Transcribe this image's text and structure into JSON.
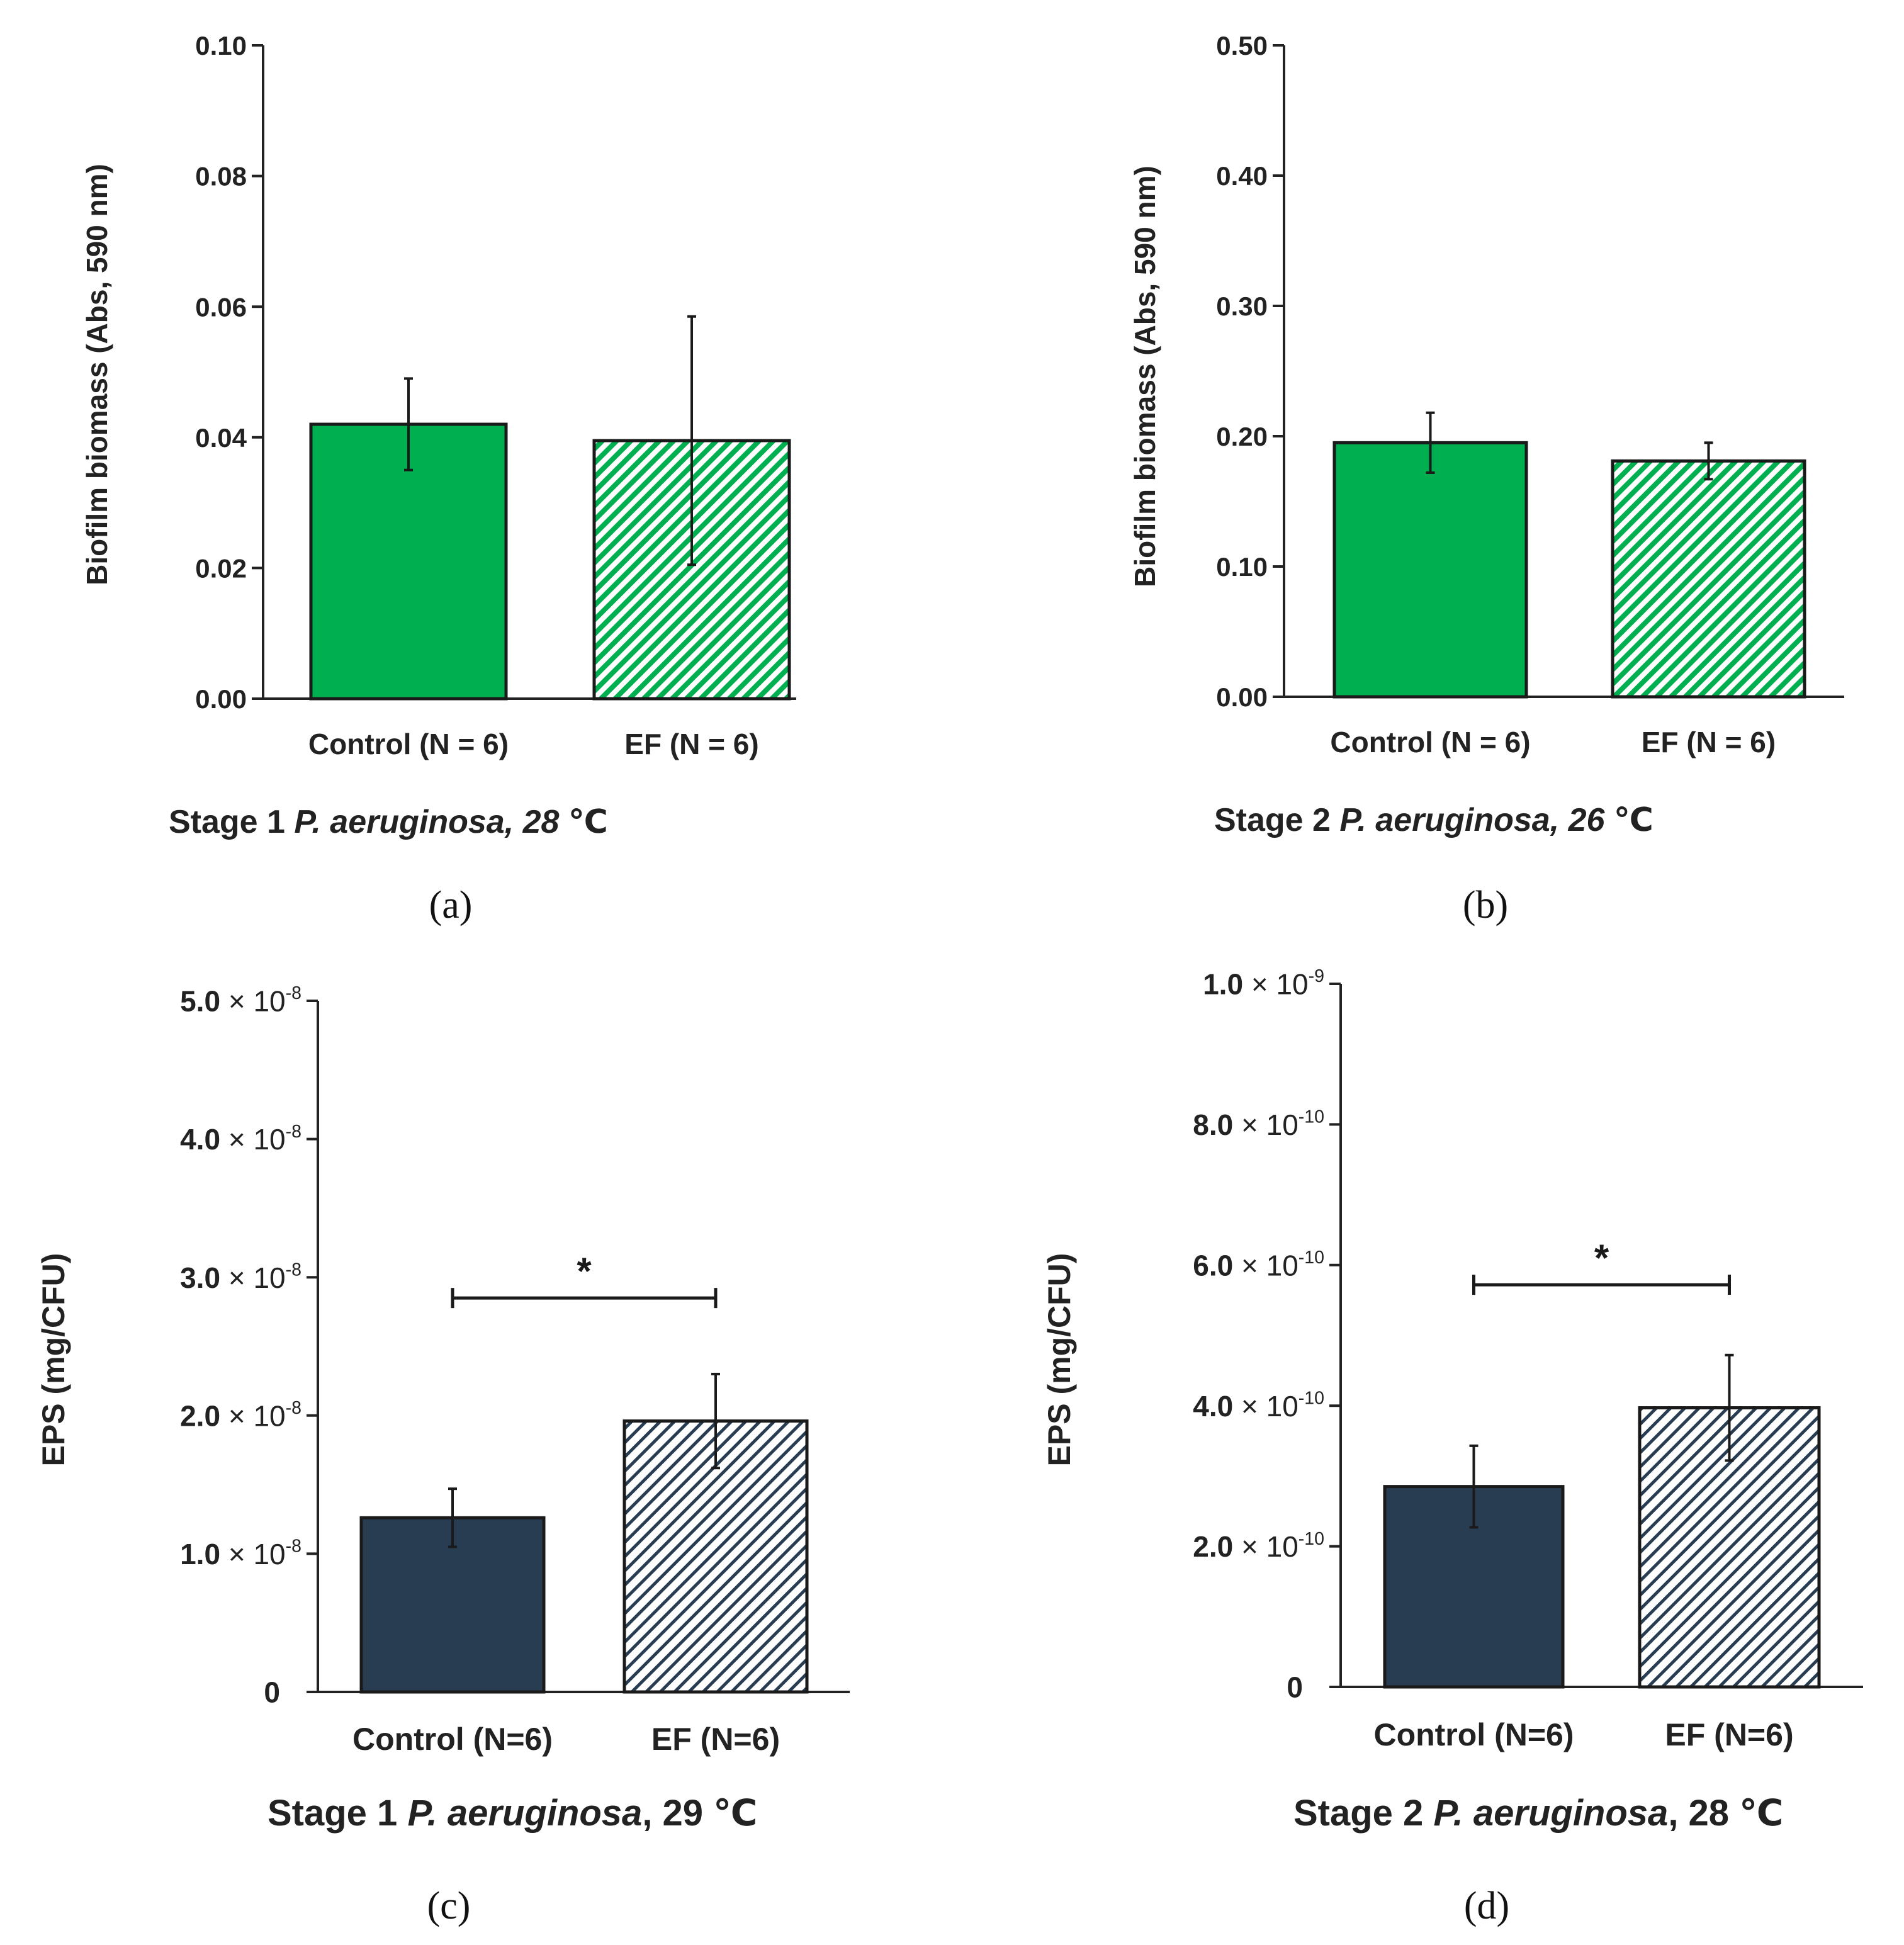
{
  "chart_data": [
    {
      "panel_label": "(a)",
      "type": "bar",
      "ylabel": "Biofilm biomass (Abs, 590 nm)",
      "ylim": [
        0,
        0.1
      ],
      "ytick_values": [
        0,
        0.02,
        0.04,
        0.06,
        0.08,
        0.1
      ],
      "ytick_labels": [
        "0.00",
        "0.02",
        "0.04",
        "0.06",
        "0.08",
        "0.10"
      ],
      "categories": [
        "Control (N = 6)",
        "EF (N = 6)"
      ],
      "values": [
        0.042,
        0.0395
      ],
      "errors": [
        0.007,
        0.019
      ],
      "fills": [
        "solid",
        "hatch"
      ],
      "bar_color": "#00b050",
      "title_parts": [
        {
          "text": "Stage 1 ",
          "italic": false
        },
        {
          "text": "P.  aeruginosa, 28",
          "italic": true
        },
        {
          "text": " ℃",
          "italic": false
        }
      ],
      "significance": null
    },
    {
      "panel_label": "(b)",
      "type": "bar",
      "ylabel": "Biofilm biomass (Abs, 590 nm)",
      "ylim": [
        0,
        0.5
      ],
      "ytick_values": [
        0,
        0.1,
        0.2,
        0.3,
        0.4,
        0.5
      ],
      "ytick_labels": [
        "0.00",
        "0.10",
        "0.20",
        "0.30",
        "0.40",
        "0.50"
      ],
      "categories": [
        "Control (N = 6)",
        "EF (N = 6)"
      ],
      "values": [
        0.195,
        0.181
      ],
      "errors": [
        0.023,
        0.014
      ],
      "fills": [
        "solid",
        "hatch"
      ],
      "bar_color": "#00b050",
      "title_parts": [
        {
          "text": "Stage 2 ",
          "italic": false
        },
        {
          "text": "P.  aeruginosa, 26",
          "italic": true
        },
        {
          "text": " ℃",
          "italic": false
        }
      ],
      "significance": null
    },
    {
      "panel_label": "(c)",
      "type": "bar",
      "ylabel": "EPS (mg/CFU)",
      "ylim": [
        0,
        5e-08
      ],
      "ytick_values": [
        0,
        1e-08,
        2e-08,
        3e-08,
        4e-08,
        5e-08
      ],
      "ytick_labels": [
        {
          "mantissa": "0",
          "exp": ""
        },
        {
          "mantissa": "1.0",
          "exp": "-8"
        },
        {
          "mantissa": "2.0",
          "exp": "-8"
        },
        {
          "mantissa": "3.0",
          "exp": "-8"
        },
        {
          "mantissa": "4.0",
          "exp": "-8"
        },
        {
          "mantissa": "5.0",
          "exp": "-8"
        }
      ],
      "categories": [
        "Control (N=6)",
        "EF (N=6)"
      ],
      "values": [
        1.26e-08,
        1.96e-08
      ],
      "errors": [
        2.1e-09,
        3.4e-09
      ],
      "fills": [
        "solid",
        "hatch"
      ],
      "bar_color": "#283d52",
      "title_parts": [
        {
          "text": "Stage 1 ",
          "italic": false
        },
        {
          "text": "P. aeruginosa",
          "italic": true
        },
        {
          "text": ", 29 ℃",
          "italic": false
        }
      ],
      "significance": {
        "label": "*",
        "y": 2.85e-08
      }
    },
    {
      "panel_label": "(d)",
      "type": "bar",
      "ylabel": "EPS (mg/CFU)",
      "ylim": [
        0,
        1e-09
      ],
      "ytick_values": [
        0,
        2e-10,
        4e-10,
        6e-10,
        8e-10,
        1e-09
      ],
      "ytick_labels": [
        {
          "mantissa": "0",
          "exp": ""
        },
        {
          "mantissa": "2.0",
          "exp": "-10"
        },
        {
          "mantissa": "4.0",
          "exp": "-10"
        },
        {
          "mantissa": "6.0",
          "exp": "-10"
        },
        {
          "mantissa": "8.0",
          "exp": "-10"
        },
        {
          "mantissa": "1.0",
          "exp": "-9"
        }
      ],
      "categories": [
        "Control (N=6)",
        "EF (N=6)"
      ],
      "values": [
        2.85e-10,
        3.97e-10
      ],
      "errors": [
        5.8e-11,
        7.5e-11
      ],
      "fills": [
        "solid",
        "hatch"
      ],
      "bar_color": "#283d52",
      "title_parts": [
        {
          "text": "Stage 2 ",
          "italic": false
        },
        {
          "text": "P. aeruginosa",
          "italic": true
        },
        {
          "text": ", 28 ℃",
          "italic": false
        }
      ],
      "significance": {
        "label": "*",
        "y": 5.72e-10
      }
    }
  ]
}
